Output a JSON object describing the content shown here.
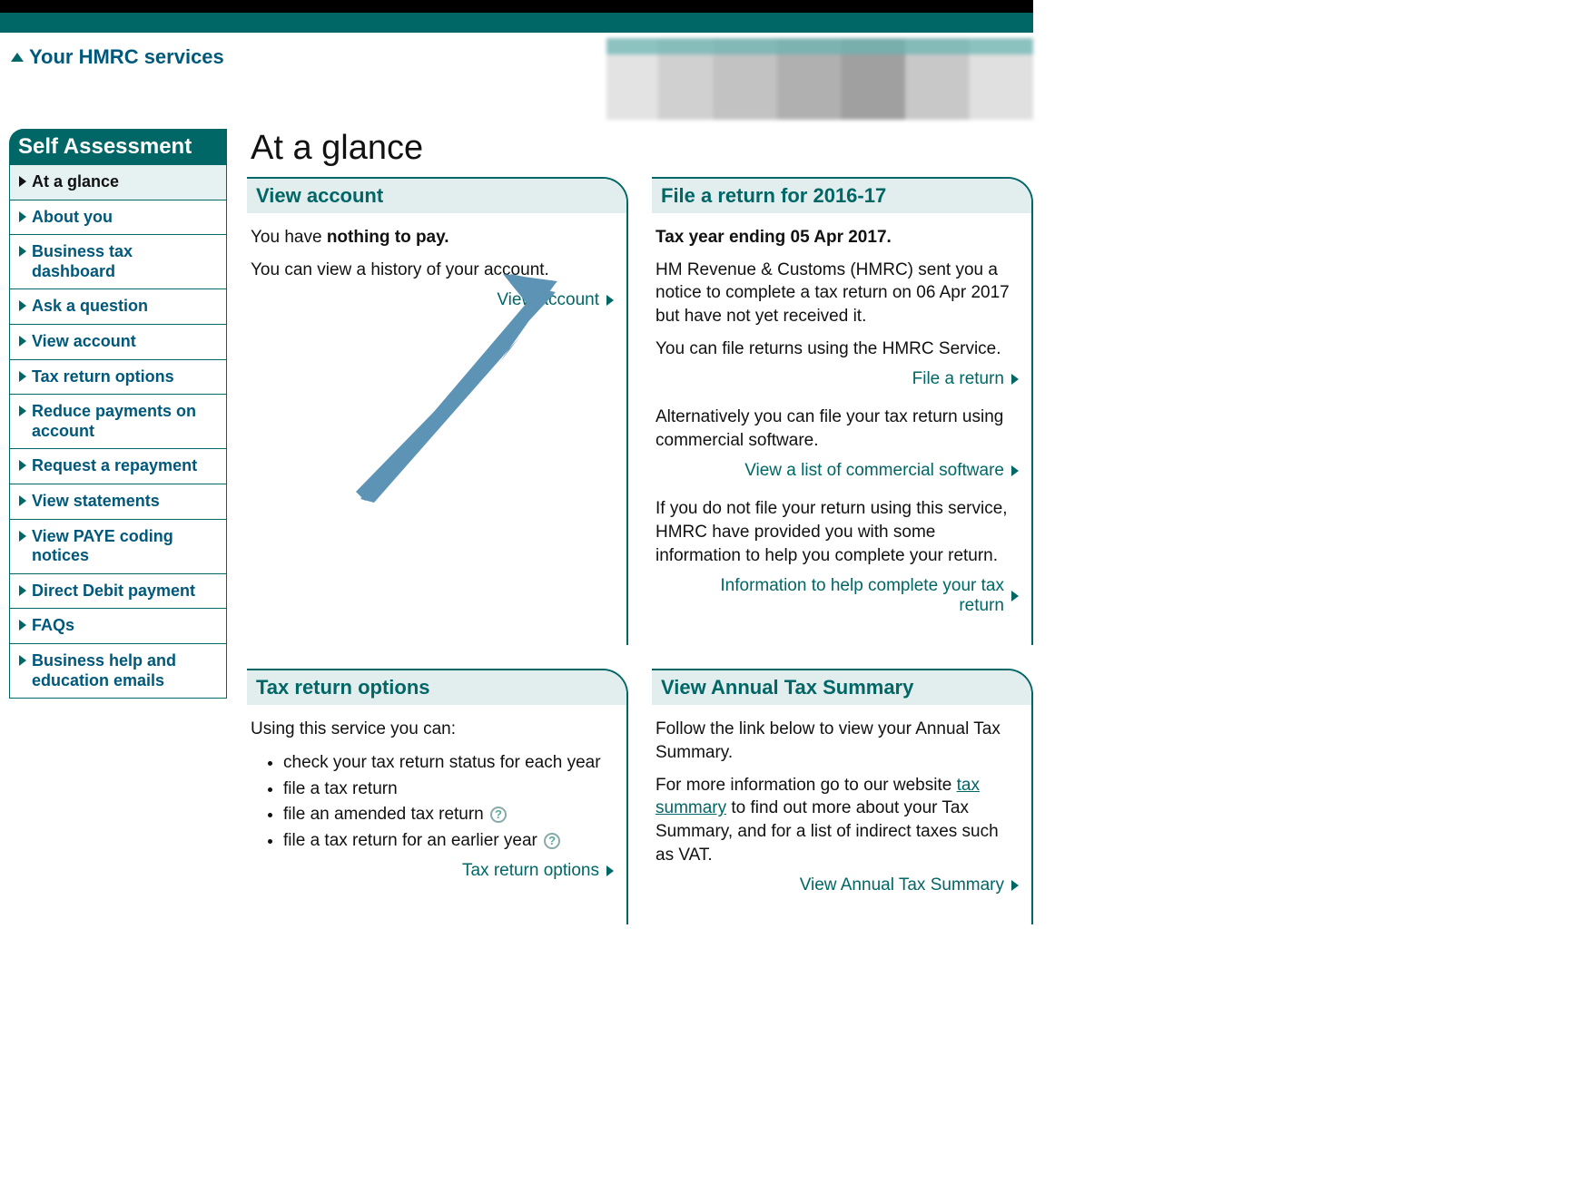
{
  "colors": {
    "teal": "#006666",
    "link": "#00587a",
    "panel_head_bg": "#e2edee",
    "sidebar_active_bg": "#e6f2f2",
    "black": "#000000",
    "arrow": "#5d94b5"
  },
  "header": {
    "services_link": "Your HMRC services"
  },
  "sidebar": {
    "title": "Self Assessment",
    "items": [
      {
        "label": "At a glance",
        "active": true
      },
      {
        "label": "About you"
      },
      {
        "label": "Business tax dashboard"
      },
      {
        "label": "Ask a question"
      },
      {
        "label": "View account"
      },
      {
        "label": "Tax return options"
      },
      {
        "label": "Reduce payments on account"
      },
      {
        "label": "Request a repayment"
      },
      {
        "label": "View statements"
      },
      {
        "label": "View PAYE coding notices"
      },
      {
        "label": "Direct Debit payment"
      },
      {
        "label": "FAQs"
      },
      {
        "label": "Business help and education emails"
      }
    ]
  },
  "page_title": "At a glance",
  "panels": {
    "view_account": {
      "title": "View account",
      "line1_pre": "You have ",
      "line1_bold": "nothing to pay.",
      "line2": "You can view a history of your account.",
      "link": "View account"
    },
    "file_return": {
      "title": "File a return for 2016-17",
      "bold_line": "Tax year ending 05 Apr 2017.",
      "p1": "HM Revenue & Customs (HMRC) sent you a notice to complete a tax return on 06 Apr 2017 but have not yet received it.",
      "p2": "You can file returns using the HMRC Service.",
      "link1": "File a return",
      "p3": "Alternatively you can file your tax return using commercial software.",
      "link2": "View a list of commercial software",
      "p4": "If you do not file your return using this service, HMRC have provided you with some information to help you complete your return.",
      "link3": "Information to help complete your tax return"
    },
    "tax_options": {
      "title": "Tax return options",
      "intro": "Using this service you can:",
      "bullets": [
        "check your tax return status for each year",
        "file a tax return",
        "file an amended tax return",
        "file a tax return for an earlier year"
      ],
      "link": "Tax return options"
    },
    "annual_summary": {
      "title": "View Annual Tax Summary",
      "p1": "Follow the link below to view your Annual Tax Summary.",
      "p2_pre": "For more information go to our website ",
      "p2_link": "tax summary",
      "p2_post": " to find out more about your Tax Summary, and for a list of indirect taxes such as VAT.",
      "link": "View Annual Tax Summary"
    }
  }
}
